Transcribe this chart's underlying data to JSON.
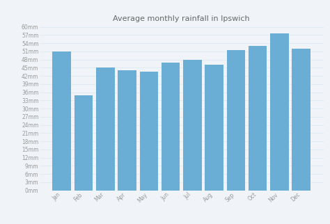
{
  "title": "Average monthly rainfall in Ipswich",
  "months": [
    "Jan",
    "Feb",
    "Mar",
    "Apr",
    "May",
    "Jun",
    "Jul",
    "Aug",
    "Sep",
    "Oct",
    "Nov",
    "Dec"
  ],
  "values": [
    51,
    35,
    45,
    44,
    43.5,
    47,
    48,
    46,
    51.5,
    53,
    57.5,
    52
  ],
  "bar_color": "#6aaed6",
  "background_color": "#f0f4f8",
  "plot_bg_color": "#f0f4f8",
  "grid_color": "#d8e8f0",
  "ylim": [
    0,
    60
  ],
  "ytick_step": 3,
  "title_fontsize": 8,
  "tick_fontsize": 5.5,
  "bar_width": 0.85
}
